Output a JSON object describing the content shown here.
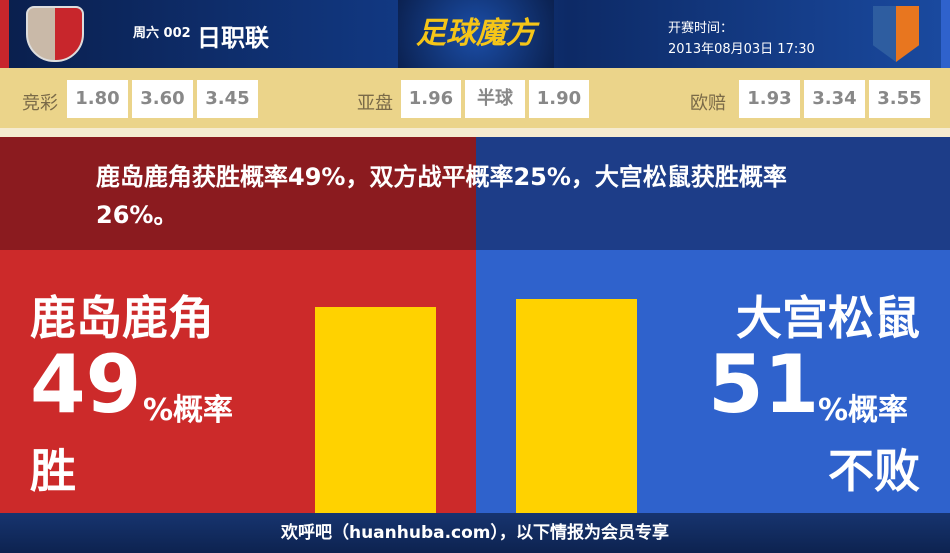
{
  "header": {
    "match_no": "周六 002",
    "league": "日职联",
    "brand": "足球魔方",
    "kickoff_label": "开赛时间：",
    "kickoff_time": "2013年08月03日 17:30"
  },
  "odds": {
    "jingcai": {
      "label": "竞彩",
      "values": [
        "1.80",
        "3.60",
        "3.45"
      ]
    },
    "yapan": {
      "label": "亚盘",
      "values": [
        "1.96",
        "半球",
        "1.90"
      ]
    },
    "ouzhou": {
      "label": "欧赔",
      "values": [
        "1.93",
        "3.34",
        "3.55"
      ]
    }
  },
  "statement": "鹿岛鹿角获胜概率49%，双方战平概率25%，大宫松鼠获胜概率26%。",
  "home": {
    "name": "鹿岛鹿角",
    "percent": "49",
    "unit": "%概率",
    "outcome": "胜",
    "value": 49,
    "color": "#cc2a2a"
  },
  "away": {
    "name": "大宫松鼠",
    "percent": "51",
    "unit": "%概率",
    "outcome": "不败",
    "value": 51,
    "color": "#2f62cc"
  },
  "footer": "欢呼吧（huanhuba.com），以下情报为会员专享"
}
